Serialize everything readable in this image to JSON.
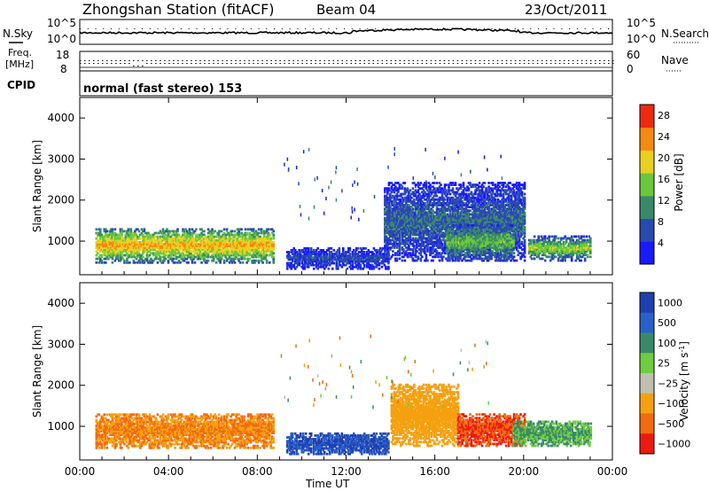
{
  "header": {
    "station": "Zhongshan Station (fitACF)",
    "beam": "Beam 04",
    "date": "23/Oct/2011"
  },
  "top_panels": {
    "nsky_label": "N.Sky",
    "nsearch_label": "N.Search",
    "freq_label_1": "Freq.",
    "freq_label_2": "[MHz]",
    "nave_label": "Nave",
    "cpid_label": "CPID",
    "cpid_text": "normal (fast stereo) 153",
    "noise_left_top": "10^5",
    "noise_left_bottom": "10^0",
    "noise_right_top": "10^5",
    "noise_right_bottom": "10^0",
    "freq_top": "18",
    "freq_bottom": "8",
    "nave_top": "60",
    "nave_bottom": "0"
  },
  "chart_data": [
    {
      "type": "heatmap",
      "title": "Power",
      "xlabel": "Time UT",
      "ylabel": "Slant Range [km]",
      "xlim": [
        "00:00",
        "00:00"
      ],
      "ylim": [
        180,
        4500
      ],
      "y_ticks": [
        1000,
        2000,
        3000,
        4000
      ],
      "colorbar": {
        "label": "Power [dB]",
        "ticks": [
          4,
          8,
          12,
          16,
          20,
          24,
          28
        ],
        "range": [
          0,
          30
        ],
        "colors": [
          "#1a1aff",
          "#2a4ab0",
          "#3a8a6a",
          "#6ac83a",
          "#e8d020",
          "#f58a10",
          "#ee2a10"
        ]
      },
      "regions": [
        {
          "t0": 0.7,
          "t1": 8.7,
          "r0": 450,
          "r1": 1300,
          "value": 22
        },
        {
          "t0": 9.3,
          "t1": 13.9,
          "r0": 300,
          "r1": 800,
          "value": 6
        },
        {
          "t0": 13.7,
          "t1": 20.0,
          "r0": 500,
          "r1": 2400,
          "value": 8
        },
        {
          "t0": 16.5,
          "t1": 19.5,
          "r0": 500,
          "r1": 1400,
          "value": 14
        },
        {
          "t0": 20.2,
          "t1": 23.0,
          "r0": 500,
          "r1": 1100,
          "value": 16
        }
      ]
    },
    {
      "type": "heatmap",
      "title": "Velocity",
      "xlabel": "Time UT",
      "ylabel": "Slant Range [km]",
      "xlim": [
        "00:00",
        "00:00"
      ],
      "ylim": [
        180,
        4500
      ],
      "y_ticks": [
        1000,
        2000,
        3000,
        4000
      ],
      "colorbar": {
        "label": "Velocity [m s^-1]",
        "ticks": [
          "1000",
          "500",
          "100",
          "25",
          "−25",
          "−100",
          "−500",
          "−1000"
        ],
        "colors": [
          "#2040b0",
          "#2a60c8",
          "#3a8a6a",
          "#70cc40",
          "#c0c0b0",
          "#f5a010",
          "#f06a10",
          "#ee1a10"
        ]
      },
      "regions": [
        {
          "t0": 0.7,
          "t1": 8.7,
          "r0": 450,
          "r1": 1300,
          "value": -100
        },
        {
          "t0": 9.3,
          "t1": 13.9,
          "r0": 300,
          "r1": 800,
          "value": 1000
        },
        {
          "t0": 14.0,
          "t1": 17.0,
          "r0": 500,
          "r1": 2000,
          "value": -50
        },
        {
          "t0": 17.0,
          "t1": 20.0,
          "r0": 500,
          "r1": 1300,
          "value": -500
        },
        {
          "t0": 19.5,
          "t1": 23.0,
          "r0": 500,
          "r1": 1100,
          "value": 100
        }
      ]
    }
  ],
  "x_axis": {
    "ticks": [
      "00:00",
      "04:00",
      "08:00",
      "12:00",
      "16:00",
      "20:00",
      "00:00"
    ],
    "label": "Time UT"
  }
}
